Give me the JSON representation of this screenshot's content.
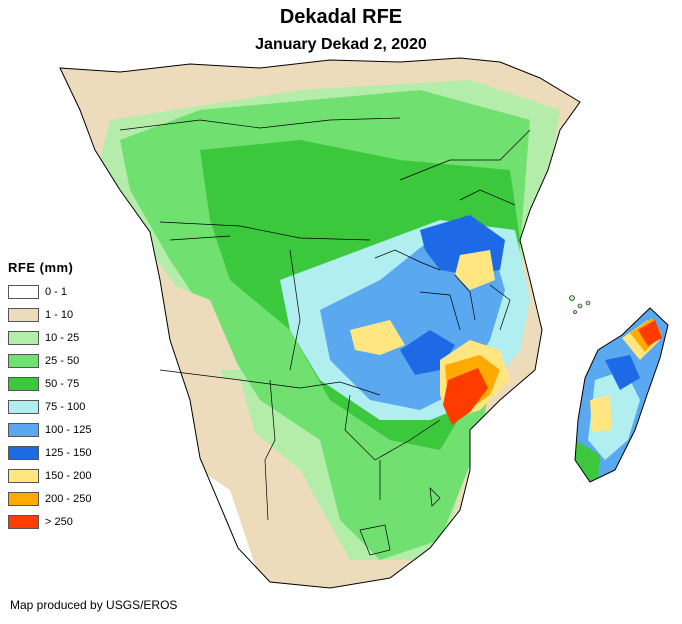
{
  "map": {
    "title": "Dekadal RFE",
    "subtitle": "January Dekad 2, 2020",
    "credit": "Map produced by USGS/EROS"
  },
  "legend": {
    "title": "RFE (mm)",
    "items": [
      {
        "label": "0 - 1",
        "color": "#ffffff"
      },
      {
        "label": "1 - 10",
        "color": "#eddcbc"
      },
      {
        "label": "10 - 25",
        "color": "#b4edaa"
      },
      {
        "label": "25 - 50",
        "color": "#70e070"
      },
      {
        "label": "50 - 75",
        "color": "#3cc83c"
      },
      {
        "label": "75 - 100",
        "color": "#b0eef0"
      },
      {
        "label": "100 - 125",
        "color": "#5aa8f0"
      },
      {
        "label": "125 - 150",
        "color": "#1e69e6"
      },
      {
        "label": "150 - 200",
        "color": "#ffe680"
      },
      {
        "label": "200 - 250",
        "color": "#ffaa00"
      },
      {
        "label": "> 250",
        "color": "#ff3c00"
      }
    ]
  },
  "colors": {
    "ocean": "#ffffff",
    "border": "#000000"
  }
}
